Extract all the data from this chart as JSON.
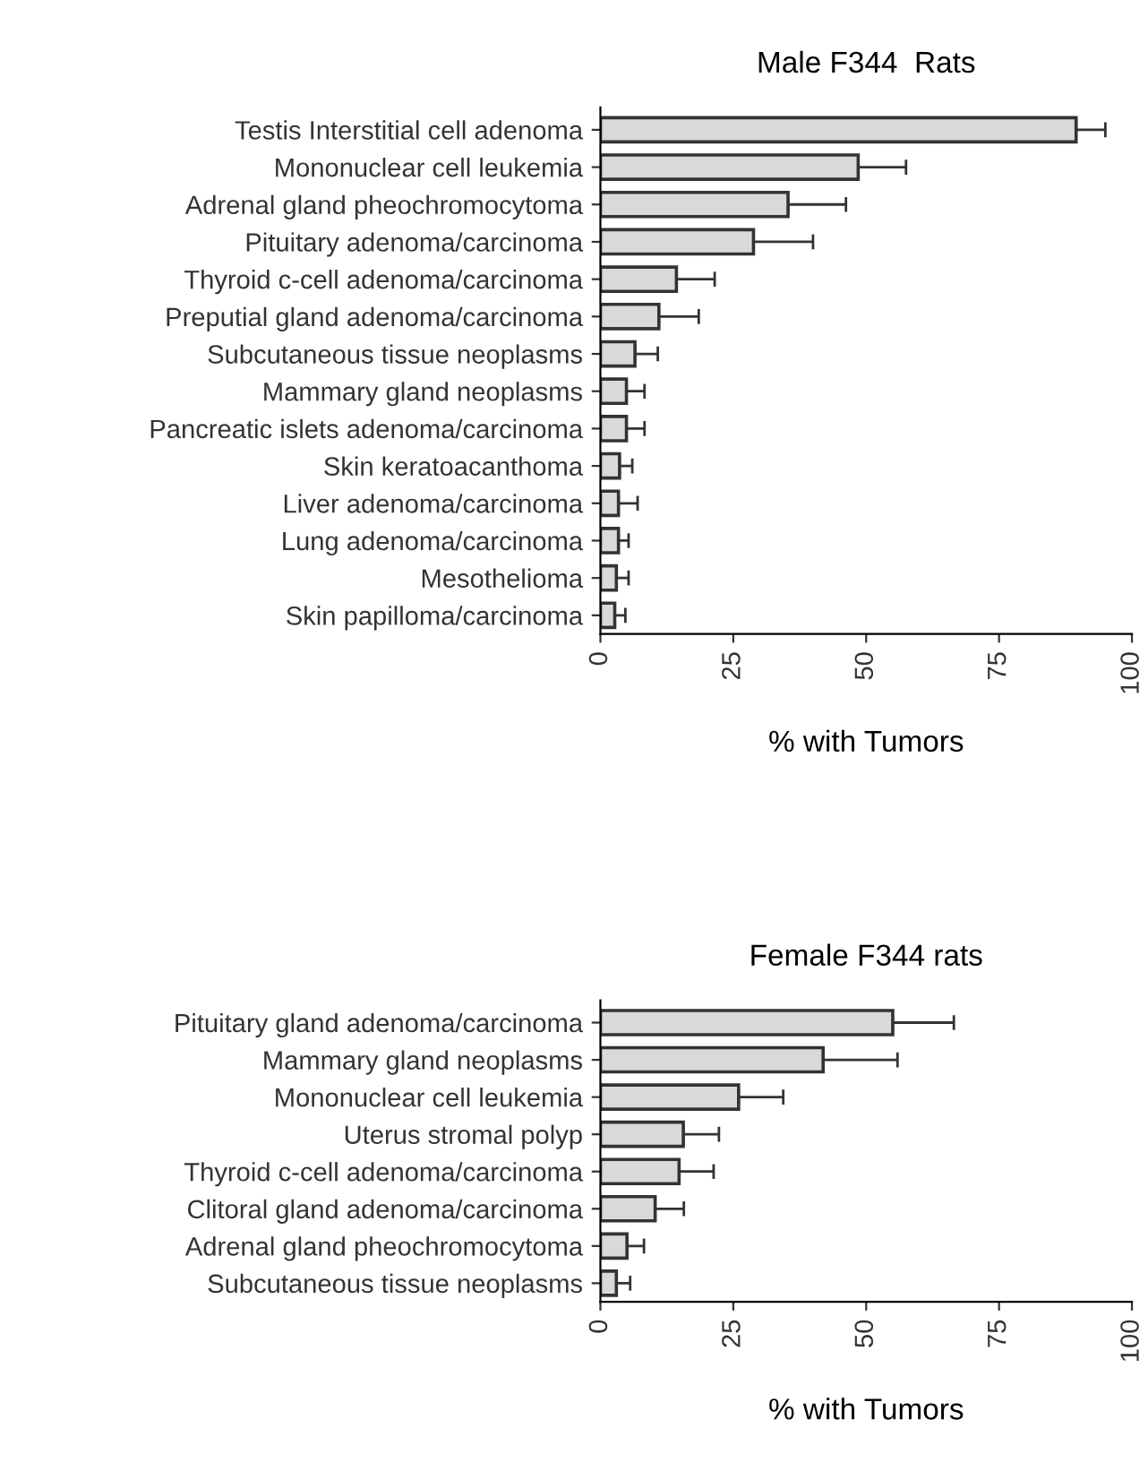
{
  "chart_data": [
    {
      "type": "bar",
      "orientation": "horizontal",
      "title": "Male F344  Rats",
      "xlabel": "% with Tumors",
      "categories": [
        "Testis Interstitial cell adenoma",
        "Mononuclear cell leukemia",
        "Adrenal gland pheochromocytoma",
        "Pituitary adenoma/carcinoma",
        "Thyroid c-cell adenoma/carcinoma",
        "Preputial gland adenoma/carcinoma",
        "Subcutaneous tissue neoplasms",
        "Mammary gland neoplasms",
        "Pancreatic islets adenoma/carcinoma",
        "Skin keratoacanthoma",
        "Liver adenoma/carcinoma",
        "Lung adenoma/carcinoma",
        "Mesothelioma",
        "Skin papilloma/carcinoma"
      ],
      "values": [
        89.5,
        48.5,
        35.3,
        28.8,
        14.3,
        11,
        6.5,
        4.9,
        4.9,
        3.6,
        3.4,
        3.4,
        3,
        2.7
      ],
      "errors": [
        [
          89.5,
          95
        ],
        [
          48.5,
          57.5
        ],
        [
          35.3,
          46.2
        ],
        [
          28.8,
          40
        ],
        [
          14.3,
          21.5
        ],
        [
          11,
          18.5
        ],
        [
          6.5,
          10.8
        ],
        [
          4.9,
          8.3
        ],
        [
          4.9,
          8.3
        ],
        [
          3.6,
          6
        ],
        [
          3.4,
          7
        ],
        [
          3.4,
          5.3
        ],
        [
          3,
          5.3
        ],
        [
          2.7,
          4.7
        ]
      ],
      "color": "#d9d9d9",
      "xlim": [
        0,
        100
      ],
      "xticks": [
        0,
        25,
        50,
        75,
        100
      ],
      "grid": false,
      "legend": false
    },
    {
      "type": "bar",
      "orientation": "horizontal",
      "title": "Female F344 rats",
      "xlabel": "% with Tumors",
      "categories": [
        "Pituitary gland adenoma/carcinoma",
        "Mammary gland neoplasms",
        "Mononuclear cell leukemia",
        "Uterus stromal polyp",
        "Thyroid c-cell adenoma/carcinoma",
        "Clitoral gland adenoma/carcinoma",
        "Adrenal gland pheochromocytoma",
        "Subcutaneous tissue neoplasms"
      ],
      "values": [
        55,
        41.9,
        26,
        15.6,
        14.8,
        10.3,
        5,
        3
      ],
      "errors": [
        [
          55,
          66.5
        ],
        [
          41.9,
          55.9
        ],
        [
          26,
          34.4
        ],
        [
          15.6,
          22.3
        ],
        [
          14.8,
          21.3
        ],
        [
          10.3,
          15.7
        ],
        [
          5,
          8.2
        ],
        [
          3,
          5.6
        ]
      ],
      "color": "#d9d9d9",
      "xlim": [
        0,
        100
      ],
      "xticks": [
        0,
        25,
        50,
        75,
        100
      ],
      "grid": false,
      "legend": false
    }
  ]
}
